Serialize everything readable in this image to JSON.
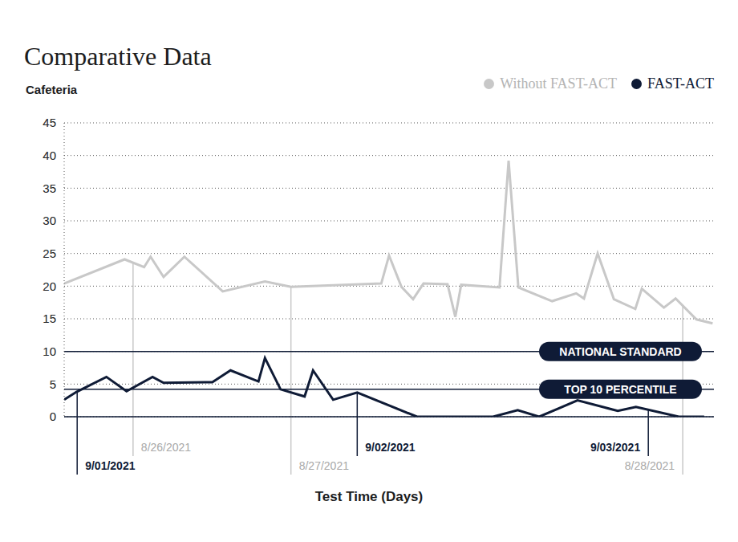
{
  "chart_data": {
    "type": "line",
    "title": "Comparative Data",
    "subtitle": "Cafeteria",
    "x_label": "Test Time (Days)",
    "xlim": [
      0,
      100
    ],
    "ylim": [
      0,
      45
    ],
    "yticks": [
      0,
      5,
      10,
      15,
      20,
      25,
      30,
      35,
      40,
      45
    ],
    "grid": true,
    "tick_labels": "y",
    "legend": "top-right",
    "series": [
      {
        "name": "Without FAST-ACT",
        "color": "#c8c8c8",
        "x": [
          0,
          9.3,
          12.3,
          13.3,
          15.3,
          18.5,
          24.4,
          30.9,
          34.9,
          48.8,
          50.0,
          51.9,
          53.7,
          55.3,
          59.0,
          60.2,
          61.1,
          67.0,
          68.4,
          69.9,
          75.1,
          78.8,
          80.0,
          82.1,
          84.6,
          87.9,
          88.9,
          92.3,
          94.1,
          97.3,
          99.8
        ],
        "values": [
          20.4,
          24.1,
          22.9,
          24.5,
          21.4,
          24.5,
          19.2,
          20.7,
          19.9,
          20.4,
          24.7,
          19.9,
          18.0,
          20.4,
          20.3,
          15.3,
          20.2,
          19.8,
          39.2,
          19.8,
          17.7,
          18.9,
          18.1,
          25.0,
          18.0,
          16.5,
          19.6,
          16.7,
          18.1,
          14.9,
          14.3
        ]
      },
      {
        "name": "FAST-ACT",
        "color": "#0f1b36",
        "x": [
          0,
          1.9,
          6.5,
          9.6,
          13.6,
          15.3,
          22.8,
          25.6,
          29.9,
          30.9,
          33.3,
          37.0,
          38.3,
          41.4,
          45.1,
          54.3,
          62.1,
          63.2,
          64.2,
          66.0,
          69.8,
          73.1,
          79.0,
          85.2,
          88.0,
          94.6,
          98.5
        ],
        "values": [
          2.6,
          3.8,
          6.1,
          3.9,
          6.1,
          5.2,
          5.3,
          7.1,
          5.4,
          9.0,
          4.2,
          3.1,
          7.1,
          2.6,
          3.7,
          0,
          0,
          0,
          0,
          0,
          1.0,
          0,
          2.5,
          0.9,
          1.5,
          0,
          0
        ]
      }
    ],
    "reference_lines": [
      {
        "value": 10,
        "label": "NATIONAL STANDARD",
        "color": "#0f1b36"
      },
      {
        "value": 4.2,
        "label": "TOP 10 PERCENTILE",
        "color": "#0f1b36"
      }
    ],
    "annotations": [
      {
        "text": "8/26/2021",
        "series": "Without FAST-ACT",
        "x": 10.6
      },
      {
        "text": "8/27/2021",
        "series": "Without FAST-ACT",
        "x": 34.9
      },
      {
        "text": "8/28/2021",
        "series": "Without FAST-ACT",
        "x": 95.2
      },
      {
        "text": "9/01/2021",
        "series": "FAST-ACT",
        "x": 2.0
      },
      {
        "text": "9/02/2021",
        "series": "FAST-ACT",
        "x": 45.1
      },
      {
        "text": "9/03/2021",
        "series": "FAST-ACT",
        "x": 89.9
      }
    ]
  }
}
